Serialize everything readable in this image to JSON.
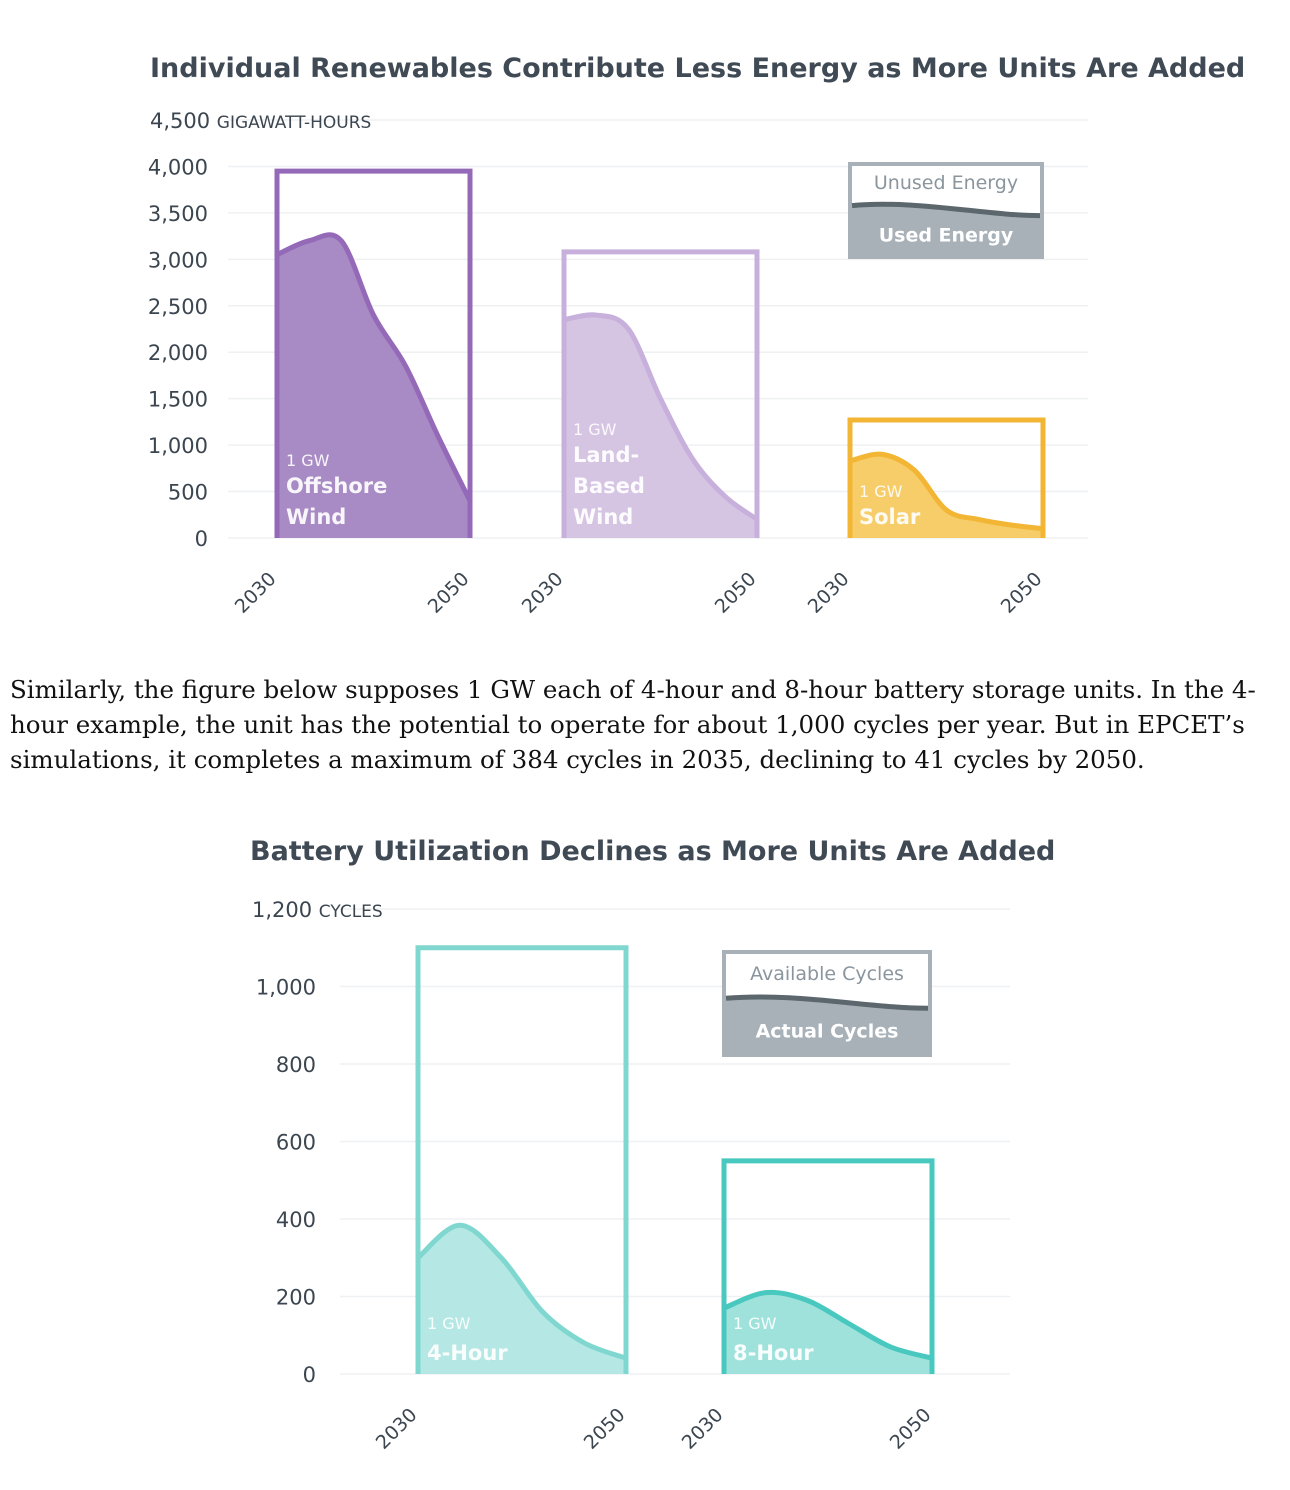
{
  "chart_data": [
    {
      "type": "area",
      "title": "Individual Renewables Contribute Less Energy as More Units Are Added",
      "yunit": "GIGAWATT-HOURS",
      "ylim": [
        0,
        4500
      ],
      "yticks": [
        "0",
        "500",
        "1,000",
        "1,500",
        "2,000",
        "2,500",
        "3,000",
        "3,500",
        "4,000",
        "4,500"
      ],
      "grid": true,
      "legend": {
        "top": "Unused Energy",
        "bottom": "Used Energy",
        "position": "top-right"
      },
      "series": [
        {
          "label_small": "1 GW",
          "label_lines": [
            "Offshore",
            "Wind"
          ],
          "capacity": 3950,
          "x_start": "2030",
          "x_end": "2050",
          "color": "#a88bc4",
          "line": "#9469b8",
          "values": [
            3050,
            3200,
            3200,
            2400,
            1850,
            1100,
            400
          ]
        },
        {
          "label_small": "1 GW",
          "label_lines": [
            "Land-",
            "Based",
            "Wind"
          ],
          "capacity": 3080,
          "x_start": "2030",
          "x_end": "2050",
          "color": "#d5c4e2",
          "line": "#c7b0db",
          "values": [
            2350,
            2400,
            2250,
            1500,
            850,
            450,
            200
          ]
        },
        {
          "label_small": "1 GW",
          "label_lines": [
            "Solar"
          ],
          "capacity": 1270,
          "x_start": "2030",
          "x_end": "2050",
          "color": "#f7cd6a",
          "line": "#f2b534",
          "values": [
            830,
            900,
            730,
            300,
            200,
            140,
            100
          ]
        }
      ]
    },
    {
      "type": "area",
      "title": "Battery Utilization Declines as More Units Are Added",
      "yunit": "CYCLES",
      "ylim": [
        0,
        1200
      ],
      "yticks": [
        "0",
        "200",
        "400",
        "600",
        "800",
        "1,000",
        "1,200"
      ],
      "grid": true,
      "legend": {
        "top": "Available Cycles",
        "bottom": "Actual Cycles",
        "position": "top-right"
      },
      "series": [
        {
          "label_small": "1 GW",
          "label_lines": [
            "4-Hour"
          ],
          "capacity": 1100,
          "x_start": "2030",
          "x_end": "2050",
          "color": "#b5e8e4",
          "line": "#7fd7d0",
          "values": [
            300,
            384,
            300,
            160,
            80,
            41
          ]
        },
        {
          "label_small": "1 GW",
          "label_lines": [
            "8-Hour"
          ],
          "capacity": 550,
          "x_start": "2030",
          "x_end": "2050",
          "color": "#9fe2dc",
          "line": "#48c8be",
          "values": [
            170,
            210,
            190,
            130,
            70,
            41
          ]
        }
      ]
    }
  ],
  "paragraph": "Similarly, the figure below supposes 1 GW each of 4-hour and 8-hour battery storage units. In the 4-hour example, the unit has the potential to operate for about 1,000 cycles per year. But in EPCET’s simulations, it completes a maximum of 384 cycles in 2035, declining to 41 cycles by 2050.",
  "colors": {
    "legend_gray": "#a8b1b8",
    "legend_line": "#5b666d",
    "text": "#3f4a55"
  }
}
